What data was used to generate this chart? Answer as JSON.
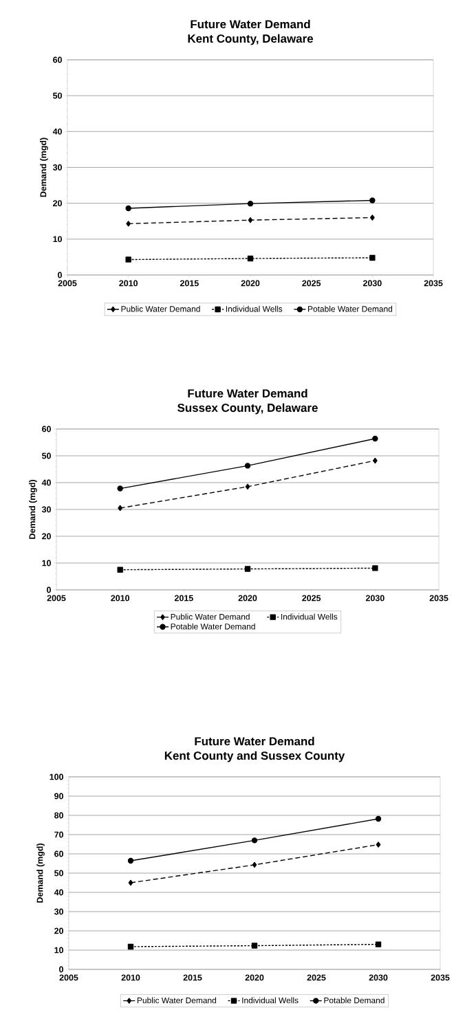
{
  "chart_data": [
    {
      "type": "line",
      "title": "Future Water Demand",
      "subtitle": "Kent County, Delaware",
      "ylabel": "Demand (mgd)",
      "x": [
        2010,
        2020,
        2030
      ],
      "xlim": [
        2005,
        2035
      ],
      "xticks": [
        2005,
        2010,
        2015,
        2020,
        2025,
        2030,
        2035
      ],
      "ylim": [
        0,
        60
      ],
      "yticks": [
        0,
        10,
        20,
        30,
        40,
        50,
        60
      ],
      "grid": "y",
      "legend": "bottom",
      "series": [
        {
          "name": "Public Water Demand",
          "color": "#000000",
          "marker": "diamond",
          "line_style": "dashed",
          "values": [
            14.3,
            15.3,
            16.0
          ]
        },
        {
          "name": "Individual Wells",
          "color": "#000000",
          "marker": "square",
          "line_style": "dotted",
          "values": [
            4.3,
            4.6,
            4.8
          ]
        },
        {
          "name": "Potable Water Demand",
          "color": "#000000",
          "marker": "circle",
          "line_style": "solid",
          "values": [
            18.6,
            19.9,
            20.8
          ]
        }
      ]
    },
    {
      "type": "line",
      "title": "Future Water Demand",
      "subtitle": "Sussex County, Delaware",
      "ylabel": "Demand (mgd)",
      "x": [
        2010,
        2020,
        2030
      ],
      "xlim": [
        2005,
        2035
      ],
      "xticks": [
        2005,
        2010,
        2015,
        2020,
        2025,
        2030,
        2035
      ],
      "ylim": [
        0,
        60
      ],
      "yticks": [
        0,
        10,
        20,
        30,
        40,
        50,
        60
      ],
      "grid": "y",
      "legend": "bottom",
      "series": [
        {
          "name": "Public Water Demand",
          "color": "#000000",
          "marker": "diamond",
          "line_style": "dashed",
          "values": [
            30.5,
            38.5,
            48.2
          ]
        },
        {
          "name": "Individual Wells",
          "color": "#000000",
          "marker": "square",
          "line_style": "dotted",
          "values": [
            7.5,
            7.8,
            8.1
          ]
        },
        {
          "name": "Potable Water Demand",
          "color": "#000000",
          "marker": "circle",
          "line_style": "solid",
          "values": [
            37.8,
            46.3,
            56.4
          ]
        }
      ]
    },
    {
      "type": "line",
      "title": "Future Water Demand",
      "subtitle": "Kent County and Sussex County",
      "ylabel": "Demand (mgd)",
      "x": [
        2010,
        2020,
        2030
      ],
      "xlim": [
        2005,
        2035
      ],
      "xticks": [
        2005,
        2010,
        2015,
        2020,
        2025,
        2030,
        2035
      ],
      "ylim": [
        0,
        100
      ],
      "yticks": [
        0,
        10,
        20,
        30,
        40,
        50,
        60,
        70,
        80,
        90,
        100
      ],
      "grid": "y",
      "legend": "bottom",
      "series": [
        {
          "name": "Public Water Demand",
          "color": "#000000",
          "marker": "diamond",
          "line_style": "dashed",
          "values": [
            45,
            54.3,
            64.8
          ]
        },
        {
          "name": "Individual Wells",
          "color": "#000000",
          "marker": "square",
          "line_style": "dotted",
          "values": [
            11.8,
            12.3,
            13.0
          ]
        },
        {
          "name": "Potable Demand",
          "color": "#000000",
          "marker": "circle",
          "line_style": "solid",
          "values": [
            56.4,
            67.0,
            78.2
          ]
        }
      ]
    }
  ]
}
